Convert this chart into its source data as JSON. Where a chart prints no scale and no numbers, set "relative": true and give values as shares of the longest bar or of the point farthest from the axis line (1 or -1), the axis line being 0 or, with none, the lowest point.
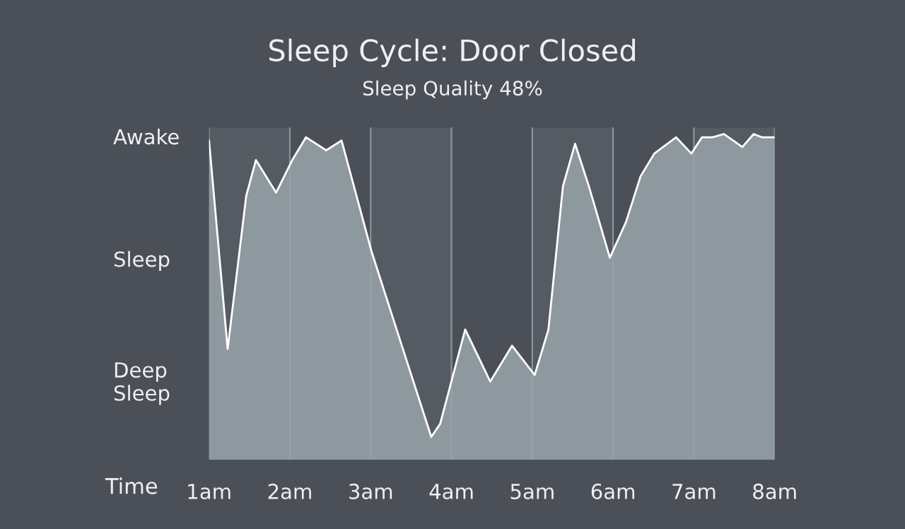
{
  "chart_data": {
    "type": "area",
    "title": "Sleep Cycle: Door Closed",
    "subtitle": "Sleep Quality 48%",
    "xlabel": "Time",
    "annotations": [
      "Awake",
      "Sleep",
      "Deep\nSleep"
    ],
    "relative": true,
    "x": [
      1.0,
      1.23,
      1.46,
      1.58,
      1.83,
      2.03,
      2.2,
      2.45,
      2.64,
      3.01,
      3.36,
      3.75,
      3.86,
      4.17,
      4.48,
      4.75,
      5.03,
      5.2,
      5.38,
      5.53,
      5.7,
      5.96,
      6.16,
      6.34,
      6.51,
      6.78,
      6.97,
      7.1,
      7.23,
      7.37,
      7.6,
      7.74,
      7.84,
      8.0
    ],
    "series": [
      {
        "color": "#8e989f",
        "values": [
          0.98,
          0.34,
          0.81,
          0.92,
          0.82,
          0.92,
          0.99,
          0.95,
          0.98,
          0.64,
          0.37,
          0.07,
          0.11,
          0.4,
          0.24,
          0.35,
          0.26,
          0.4,
          0.84,
          0.97,
          0.84,
          0.62,
          0.73,
          0.87,
          0.94,
          0.99,
          0.94,
          0.99,
          0.99,
          1.0,
          0.96,
          1.0,
          0.99,
          0.99
        ]
      }
    ],
    "xlim": [
      1,
      8
    ],
    "xticks": [
      {
        "value": 1,
        "label": "1am"
      },
      {
        "value": 2,
        "label": "2am"
      },
      {
        "value": 3,
        "label": "3am"
      },
      {
        "value": 4,
        "label": "4am"
      },
      {
        "value": 5,
        "label": "5am"
      },
      {
        "value": 6,
        "label": "6am"
      },
      {
        "value": 7,
        "label": "7am"
      },
      {
        "value": 8,
        "label": "8am"
      }
    ],
    "grid": "x",
    "bands": [
      {
        "axis": "x",
        "from": 1,
        "to": 2,
        "color": "#555b62"
      },
      {
        "axis": "x",
        "from": 3,
        "to": 4,
        "color": "#555b62"
      },
      {
        "axis": "x",
        "from": 5,
        "to": 6,
        "color": "#555b62"
      },
      {
        "axis": "x",
        "from": 7,
        "to": 8,
        "color": "#555b62"
      }
    ]
  }
}
